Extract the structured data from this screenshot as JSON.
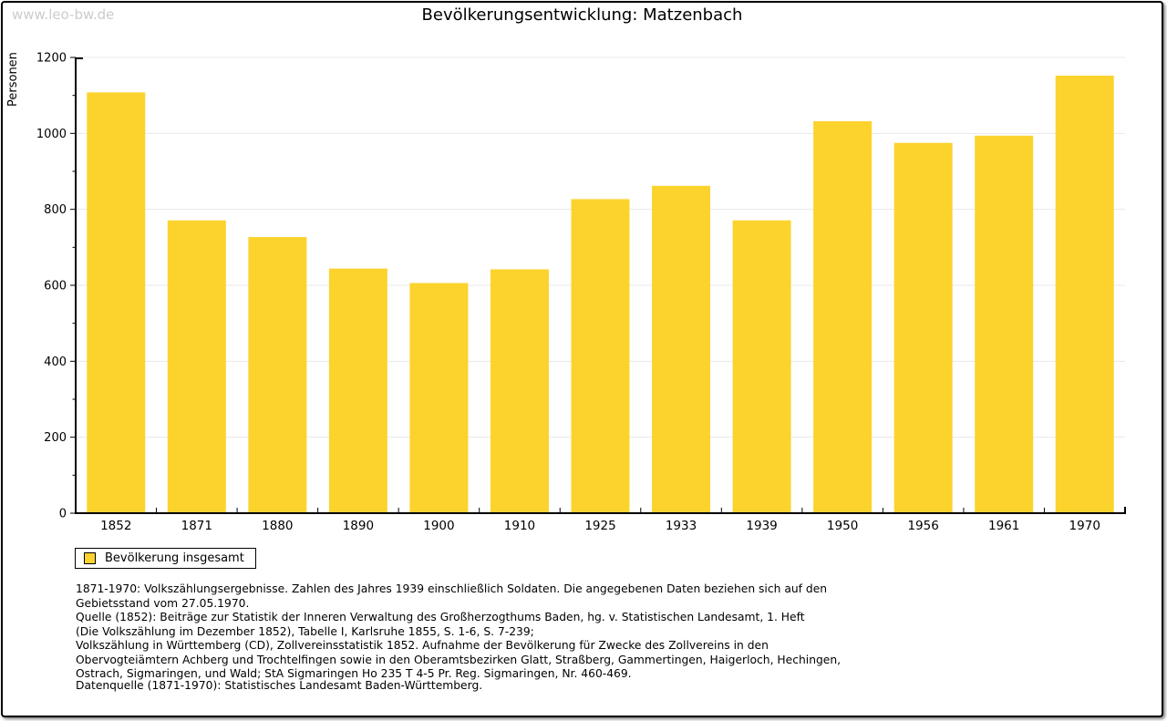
{
  "page": {
    "watermark": "www.leo-bw.de",
    "title": "Bevölkerungsentwicklung: Matzenbach"
  },
  "chart_data": {
    "type": "bar",
    "title": "Bevölkerungsentwicklung: Matzenbach",
    "xlabel": "",
    "ylabel": "Personen",
    "categories": [
      "1852",
      "1871",
      "1880",
      "1890",
      "1900",
      "1910",
      "1925",
      "1933",
      "1939",
      "1950",
      "1956",
      "1961",
      "1970"
    ],
    "values": [
      1108,
      771,
      727,
      644,
      606,
      642,
      827,
      862,
      771,
      1032,
      975,
      994,
      1152
    ],
    "series_name": "Bevölkerung insgesamt",
    "ylim": [
      0,
      1200
    ],
    "ytick_step": 200,
    "yminor_step": 100,
    "grid": true,
    "legend_position": "bottom-left",
    "bar_color": "#FCD32D"
  },
  "legend": {
    "label": "Bevölkerung insgesamt",
    "swatch_color": "#FCD32D"
  },
  "footnotes": {
    "notes": "1871-1970: Volkszählungsergebnisse. Zahlen des Jahres 1939 einschließlich Soldaten. Die angegebenen Daten beziehen sich auf den\nGebietsstand vom 27.05.1970.\nQuelle (1852): Beiträge zur Statistik der Inneren Verwaltung des Großherzogthums Baden, hg. v. Statistischen Landesamt, 1. Heft\n(Die Volkszählung im Dezember 1852), Tabelle I, Karlsruhe 1855, S. 1-6, S. 7-239;\nVolkszählung in Württemberg (CD), Zollvereinsstatistik 1852. Aufnahme der Bevölkerung für Zwecke des Zollvereins in den\nObervogteiämtern Achberg und Trochtelfingen sowie in den Oberamtsbezirken Glatt, Straßberg, Gammertingen, Haigerloch, Hechingen,\nOstrach, Sigmaringen, und Wald; StA Sigmaringen Ho 235 T 4-5 Pr. Reg. Sigmaringen, Nr. 460-469.",
    "datasource": "Datenquelle (1871-1970): Statistisches Landesamt Baden-Württemberg."
  },
  "colors": {
    "bar": "#FCD32D",
    "gridline": "#E8E8E8",
    "axis": "#000000",
    "watermark": "#CCCCCC",
    "page_border": "#000000",
    "background": "#FFFFFF"
  }
}
